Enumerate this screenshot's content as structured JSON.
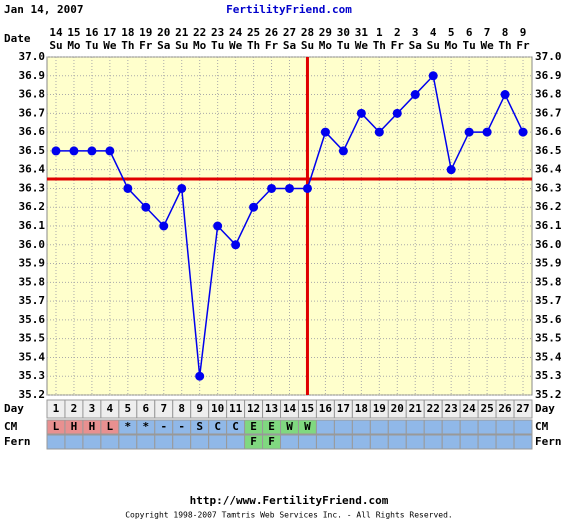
{
  "chart_data": {
    "type": "line",
    "date_header": "Jan 14, 2007",
    "title": "FertilityFriend.com",
    "url": "http://www.FertilityFriend.com",
    "copyright": "Copyright 1998-2007 Tamtris Web Services Inc. - All Rights Reserved.",
    "date_label": "Date",
    "day_label": "Day",
    "cm_label": "CM",
    "fern_label": "Fern",
    "categories": [
      1,
      2,
      3,
      4,
      5,
      6,
      7,
      8,
      9,
      10,
      11,
      12,
      13,
      14,
      15,
      16,
      17,
      18,
      19,
      20,
      21,
      22,
      23,
      24,
      25,
      26,
      27
    ],
    "dates": [
      14,
      15,
      16,
      17,
      18,
      19,
      20,
      21,
      22,
      23,
      24,
      25,
      26,
      27,
      28,
      29,
      30,
      31,
      1,
      2,
      3,
      4,
      5,
      6,
      7,
      8,
      9
    ],
    "weekdays": [
      "Su",
      "Mo",
      "Tu",
      "We",
      "Th",
      "Fr",
      "Sa",
      "Su",
      "Mo",
      "Tu",
      "We",
      "Th",
      "Fr",
      "Sa",
      "Su",
      "Mo",
      "Tu",
      "We",
      "Th",
      "Fr",
      "Sa",
      "Su",
      "Mo",
      "Tu",
      "We",
      "Th",
      "Fr"
    ],
    "cm": [
      "L",
      "H",
      "H",
      "L",
      "*",
      "*",
      "-",
      "-",
      "S",
      "C",
      "C",
      "E",
      "E",
      "W",
      "W",
      null,
      null,
      null,
      null,
      null,
      null,
      null,
      null,
      null,
      null,
      null,
      null
    ],
    "cm_colors": [
      "#e89090",
      "#e89090",
      "#e89090",
      "#e89090",
      "#90b8e8",
      "#90b8e8",
      "#90b8e8",
      "#90b8e8",
      "#90b8e8",
      "#90b8e8",
      "#90b8e8",
      "#80d880",
      "#80d880",
      "#80d880",
      "#80d880",
      "#90b8e8",
      "#90b8e8",
      "#90b8e8",
      "#90b8e8",
      "#90b8e8",
      "#90b8e8",
      "#90b8e8",
      "#90b8e8",
      "#90b8e8",
      "#90b8e8",
      "#90b8e8",
      "#90b8e8"
    ],
    "fern": [
      null,
      null,
      null,
      null,
      null,
      null,
      null,
      null,
      null,
      null,
      null,
      "F",
      "F",
      null,
      null,
      null,
      null,
      null,
      null,
      null,
      null,
      null,
      null,
      null,
      null,
      null,
      null
    ],
    "fern_colors": [
      "#90b8e8",
      "#90b8e8",
      "#90b8e8",
      "#90b8e8",
      "#90b8e8",
      "#90b8e8",
      "#90b8e8",
      "#90b8e8",
      "#90b8e8",
      "#90b8e8",
      "#90b8e8",
      "#80d880",
      "#80d880",
      "#90b8e8",
      "#90b8e8",
      "#90b8e8",
      "#90b8e8",
      "#90b8e8",
      "#90b8e8",
      "#90b8e8",
      "#90b8e8",
      "#90b8e8",
      "#90b8e8",
      "#90b8e8",
      "#90b8e8",
      "#90b8e8",
      "#90b8e8"
    ],
    "series": [
      {
        "color": "#0000ee",
        "values": [
          36.5,
          36.5,
          36.5,
          36.5,
          36.3,
          36.2,
          36.1,
          36.3,
          35.3,
          36.1,
          36.0,
          36.2,
          36.3,
          36.3,
          36.3,
          36.6,
          36.5,
          36.7,
          36.6,
          36.7,
          36.8,
          36.9,
          36.4,
          36.6,
          36.6,
          36.8,
          36.6
        ]
      }
    ],
    "coverline": 36.35,
    "ovulation_day": 15,
    "marker_line_color": "#e00000",
    "ylim": [
      35.2,
      37.0
    ],
    "yticks": [
      35.2,
      35.3,
      35.4,
      35.5,
      35.6,
      35.7,
      35.8,
      35.9,
      {
        "value": 36.0,
        "label": "36.0"
      },
      36.1,
      36.2,
      36.3,
      36.4,
      36.5,
      36.6,
      36.7,
      36.8,
      36.9,
      {
        "value": 37.0,
        "label": "37.0"
      }
    ],
    "grid": true
  }
}
